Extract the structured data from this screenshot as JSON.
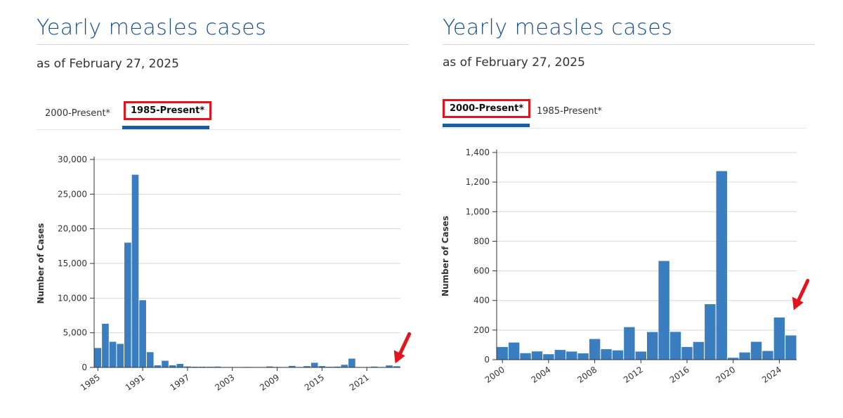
{
  "left": {
    "title": "Yearly measles cases",
    "subtitle": "as of February 27, 2025",
    "tabs": [
      {
        "label": "2000-Present*",
        "active": false
      },
      {
        "label": "1985-Present*",
        "active": true
      }
    ]
  },
  "right": {
    "title": "Yearly measles cases",
    "subtitle": "as of February 27, 2025",
    "tabs": [
      {
        "label": "2000-Present*",
        "active": true
      },
      {
        "label": "1985-Present*",
        "active": false
      }
    ]
  },
  "colors": {
    "bar": "#3a7ebf",
    "highlight": "#e3151a",
    "title": "#1c4f8a",
    "tab_underline": "#1a5da3"
  },
  "chart_data": [
    {
      "type": "bar",
      "title": "",
      "xlabel": "",
      "ylabel": "Number of Cases",
      "ylim": [
        0,
        30000
      ],
      "yticks": [
        0,
        5000,
        10000,
        15000,
        20000,
        25000,
        30000
      ],
      "ytick_labels": [
        "0",
        "5,000",
        "10,000",
        "15,000",
        "20,000",
        "25,000",
        "30,000"
      ],
      "xtick_labels": [
        "1985",
        "1991",
        "1997",
        "2003",
        "2009",
        "2015",
        "2021"
      ],
      "grid": true,
      "categories": [
        "1985",
        "1986",
        "1987",
        "1988",
        "1989",
        "1990",
        "1991",
        "1992",
        "1993",
        "1994",
        "1995",
        "1996",
        "1997",
        "1998",
        "1999",
        "2000",
        "2001",
        "2002",
        "2003",
        "2004",
        "2005",
        "2006",
        "2007",
        "2008",
        "2009",
        "2010",
        "2011",
        "2012",
        "2013",
        "2014",
        "2015",
        "2016",
        "2017",
        "2018",
        "2019",
        "2020",
        "2021",
        "2022",
        "2023",
        "2024",
        "2025"
      ],
      "values": [
        2800,
        6300,
        3700,
        3400,
        18000,
        27800,
        9700,
        2200,
        300,
        960,
        300,
        510,
        140,
        100,
        100,
        90,
        120,
        40,
        60,
        40,
        70,
        60,
        40,
        140,
        70,
        60,
        220,
        60,
        190,
        670,
        190,
        90,
        120,
        380,
        1270,
        10,
        50,
        120,
        60,
        285,
        165
      ],
      "annotation": "red arrow pointing to 2025 bar"
    },
    {
      "type": "bar",
      "title": "",
      "xlabel": "",
      "ylabel": "Number of Cases",
      "ylim": [
        0,
        1400
      ],
      "yticks": [
        0,
        200,
        400,
        600,
        800,
        1000,
        1200,
        1400
      ],
      "ytick_labels": [
        "0",
        "200",
        "400",
        "600",
        "800",
        "1,000",
        "1,200",
        "1,400"
      ],
      "xtick_labels": [
        "2000",
        "2004",
        "2008",
        "2012",
        "2016",
        "2020",
        "2024"
      ],
      "grid": true,
      "categories": [
        "2000",
        "2001",
        "2002",
        "2003",
        "2004",
        "2005",
        "2006",
        "2007",
        "2008",
        "2009",
        "2010",
        "2011",
        "2012",
        "2013",
        "2014",
        "2015",
        "2016",
        "2017",
        "2018",
        "2019",
        "2020",
        "2021",
        "2022",
        "2023",
        "2024",
        "2025"
      ],
      "values": [
        86,
        116,
        44,
        56,
        37,
        66,
        55,
        43,
        140,
        71,
        63,
        220,
        55,
        187,
        667,
        188,
        86,
        120,
        375,
        1274,
        13,
        49,
        121,
        59,
        285,
        164
      ],
      "annotation": "red arrow pointing to 2025 bar"
    }
  ]
}
